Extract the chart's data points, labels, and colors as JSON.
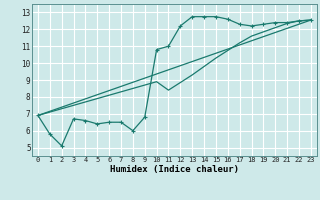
{
  "xlabel": "Humidex (Indice chaleur)",
  "bg_color": "#cee9e9",
  "line_color": "#1a7a6e",
  "grid_color": "#ffffff",
  "xlim": [
    -0.5,
    23.5
  ],
  "ylim": [
    4.5,
    13.5
  ],
  "yticks": [
    5,
    6,
    7,
    8,
    9,
    10,
    11,
    12,
    13
  ],
  "xticks": [
    0,
    1,
    2,
    3,
    4,
    5,
    6,
    7,
    8,
    9,
    10,
    11,
    12,
    13,
    14,
    15,
    16,
    17,
    18,
    19,
    20,
    21,
    22,
    23
  ],
  "line1_x": [
    0,
    1,
    2,
    3,
    4,
    5,
    6,
    7,
    8,
    9,
    10,
    11,
    12,
    13,
    14,
    15,
    16,
    17,
    18,
    19,
    20,
    21,
    22,
    23
  ],
  "line1_y": [
    6.9,
    5.8,
    5.1,
    6.7,
    6.6,
    6.4,
    6.5,
    6.5,
    6.0,
    6.8,
    10.8,
    11.0,
    12.2,
    12.75,
    12.75,
    12.75,
    12.6,
    12.3,
    12.2,
    12.3,
    12.4,
    12.4,
    12.5,
    12.55
  ],
  "line2_x": [
    0,
    23
  ],
  "line2_y": [
    6.9,
    12.55
  ],
  "line3_x": [
    0,
    10,
    11,
    12,
    13,
    14,
    15,
    16,
    17,
    18,
    19,
    20,
    21,
    22,
    23
  ],
  "line3_y": [
    6.9,
    8.9,
    8.4,
    8.85,
    9.3,
    9.8,
    10.3,
    10.75,
    11.2,
    11.6,
    11.85,
    12.1,
    12.35,
    12.5,
    12.55
  ]
}
